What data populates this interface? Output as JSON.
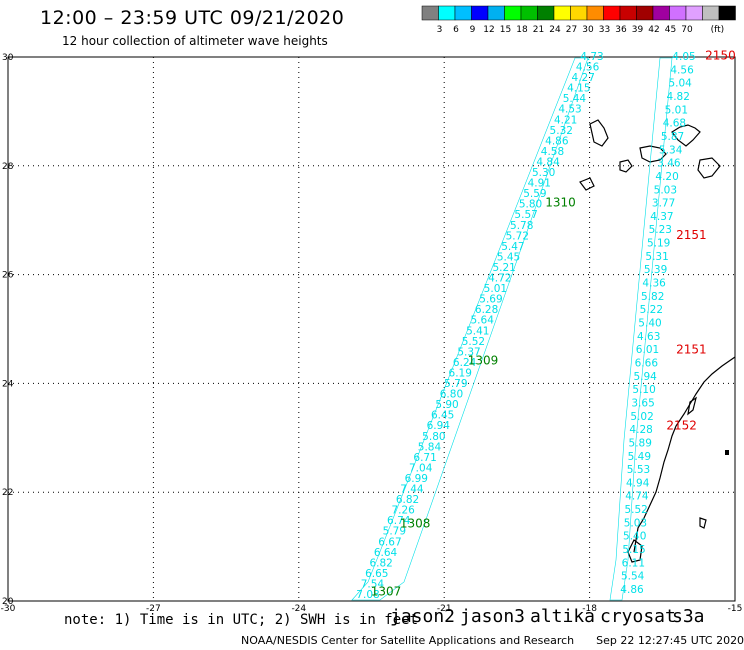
{
  "header": {
    "title": "12:00 – 23:59 UTC 09/21/2020",
    "subtitle": "12 hour collection of altimeter wave heights"
  },
  "colorbar": {
    "unit": "(ft)",
    "colors": [
      "#808080",
      "#00ffff",
      "#00bfff",
      "#0000ff",
      "#00b0f0",
      "#00ff00",
      "#00c000",
      "#008000",
      "#ffff00",
      "#ffd700",
      "#ff8c00",
      "#ff0000",
      "#c80000",
      "#a00000",
      "#a000a0",
      "#d070ff",
      "#e0a0ff",
      "#c0c0c0",
      "#000000"
    ],
    "labels": [
      "3",
      "6",
      "9",
      "12",
      "15",
      "18",
      "21",
      "24",
      "27",
      "30",
      "33",
      "36",
      "39",
      "42",
      "45",
      "70"
    ]
  },
  "axes": {
    "x_ticks": [
      "-30",
      "-27",
      "-24",
      "-21",
      "-18",
      "-15"
    ],
    "y_ticks": [
      "30",
      "28",
      "26",
      "24",
      "22",
      "20"
    ]
  },
  "tracks": {
    "cyan_color": "#00e0e8",
    "left_track": [
      "4.73",
      "4.56",
      "4.27",
      "4.15",
      "5.44",
      "4.53",
      "4.21",
      "5.32",
      "4.86",
      "4.58",
      "4.84",
      "5.30",
      "4.91",
      "5.59",
      "5.80",
      "5.57",
      "5.78",
      "5.72",
      "5.47",
      "5.45",
      "5.21",
      "4.72",
      "5.01",
      "5.69",
      "6.28",
      "5.64",
      "5.41",
      "5.52",
      "5.37",
      "6.24",
      "6.19",
      "5.79",
      "6.80",
      "5.90",
      "6.45",
      "6.94",
      "5.80",
      "5.84",
      "6.71",
      "7.04",
      "6.99",
      "7.44",
      "6.82",
      "7.26",
      "6.74",
      "5.79",
      "6.67",
      "6.64",
      "6.82",
      "6.65",
      "7.54",
      "7.08"
    ],
    "right_track": [
      "4.05",
      "4.56",
      "5.04",
      "4.82",
      "5.01",
      "4.68",
      "5.87",
      "5.34",
      "3.46",
      "4.20",
      "5.03",
      "3.77",
      "4.37",
      "5.23",
      "5.19",
      "5.31",
      "5.39",
      "4.36",
      "5.82",
      "5.22",
      "5.40",
      "4.63",
      "6.01",
      "6.66",
      "5.94",
      "5.10",
      "3.65",
      "5.02",
      "4.28",
      "5.89",
      "5.49",
      "5.53",
      "4.94",
      "4.74",
      "5.52",
      "5.03",
      "5.40",
      "5.15",
      "6.11",
      "5.54",
      "4.86"
    ],
    "pass_labels_green": [
      {
        "text": "1310",
        "lat": 27.25,
        "lon": -18.6
      },
      {
        "text": "1309",
        "lat": 24.35,
        "lon": -20.2
      },
      {
        "text": "1308",
        "lat": 21.35,
        "lon": -21.6
      },
      {
        "text": "1307",
        "lat": 20.1,
        "lon": -22.2
      }
    ],
    "pass_labels_red": [
      {
        "text": "2150",
        "lat": 29.95,
        "lon": -15.3
      },
      {
        "text": "2151",
        "lat": 26.65,
        "lon": -15.9
      },
      {
        "text": "2151",
        "lat": 24.55,
        "lon": -15.9
      },
      {
        "text": "2152",
        "lat": 23.15,
        "lon": -16.1
      }
    ]
  },
  "footer": {
    "note": "note: 1) Time is in UTC; 2) SWH is in feet",
    "satellites": [
      {
        "name": "jason2",
        "color": "#0000ff"
      },
      {
        "name": "jason3",
        "color": "#008000"
      },
      {
        "name": "altika",
        "color": "#ff8c00"
      },
      {
        "name": "cryosat",
        "color": "#e00000"
      },
      {
        "name": "s3a",
        "color": "#a00000"
      }
    ],
    "credit": "NOAA/NESDIS Center for Satellite Applications and Research",
    "timestamp": "Sep 22 12:27:45 UTC 2020"
  }
}
